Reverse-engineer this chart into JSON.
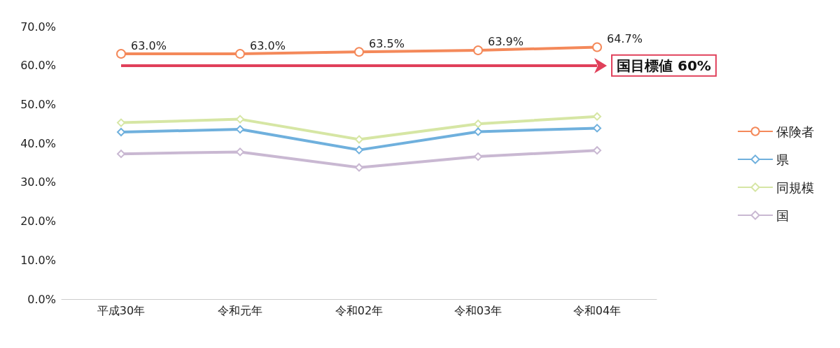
{
  "chart_data": {
    "type": "line",
    "categories": [
      "平成30年",
      "令和元年",
      "令和02年",
      "令和03年",
      "令和04年"
    ],
    "series": [
      {
        "name": "保険者",
        "color": "#f4895a",
        "marker": "circle",
        "values": [
          63.0,
          63.0,
          63.5,
          63.9,
          64.7
        ],
        "value_labels": [
          "63.0%",
          "63.0%",
          "63.5%",
          "63.9%",
          "64.7%"
        ]
      },
      {
        "name": "県",
        "color": "#6fb0dd",
        "marker": "diamond",
        "values": [
          42.9,
          43.6,
          38.3,
          43.0,
          43.9
        ]
      },
      {
        "name": "同規模",
        "color": "#d6e6a4",
        "marker": "diamond",
        "values": [
          45.3,
          46.2,
          41.0,
          45.0,
          46.9
        ]
      },
      {
        "name": "国",
        "color": "#c9b8d2",
        "marker": "diamond",
        "values": [
          37.3,
          37.8,
          33.8,
          36.6,
          38.2
        ]
      }
    ],
    "ylim": [
      0,
      70
    ],
    "yticks": [
      {
        "value": 0,
        "label": "0.0%"
      },
      {
        "value": 10,
        "label": "10.0%"
      },
      {
        "value": 20,
        "label": "20.0%"
      },
      {
        "value": 30,
        "label": "30.0%"
      },
      {
        "value": 40,
        "label": "40.0%"
      },
      {
        "value": 50,
        "label": "50.0%"
      },
      {
        "value": 60,
        "label": "60.0%"
      },
      {
        "value": 70,
        "label": "70.0%"
      }
    ],
    "ref_lines": [
      {
        "axis": "y",
        "value": 60,
        "label": "国目標値 60%",
        "color": "#e0405a"
      }
    ],
    "grid": false,
    "legend": "right"
  }
}
